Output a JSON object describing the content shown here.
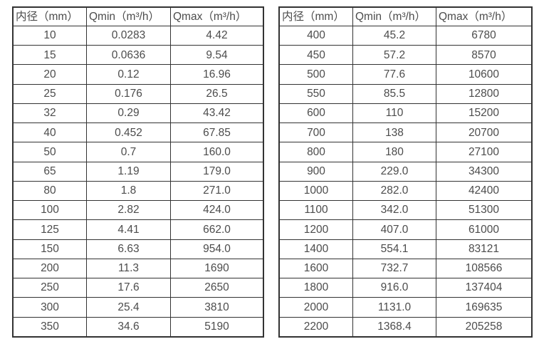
{
  "colors": {
    "border": "#333333",
    "text": "#4c4c4c",
    "background": "#ffffff"
  },
  "tables": [
    {
      "name": "flow-table-small-diameters",
      "headers": [
        "内径（mm）",
        "Qmin（m³/h）",
        "Qmax（m³/h）"
      ],
      "rows": [
        [
          "10",
          "0.0283",
          "4.42"
        ],
        [
          "15",
          "0.0636",
          "9.54"
        ],
        [
          "20",
          "0.12",
          "16.96"
        ],
        [
          "25",
          "0.176",
          "26.5"
        ],
        [
          "32",
          "0.29",
          "43.42"
        ],
        [
          "40",
          "0.452",
          "67.85"
        ],
        [
          "50",
          "0.7",
          "160.0"
        ],
        [
          "65",
          "1.19",
          "179.0"
        ],
        [
          "80",
          "1.8",
          "271.0"
        ],
        [
          "100",
          "2.82",
          "424.0"
        ],
        [
          "125",
          "4.41",
          "662.0"
        ],
        [
          "150",
          "6.63",
          "954.0"
        ],
        [
          "200",
          "11.3",
          "1690"
        ],
        [
          "250",
          "17.6",
          "2650"
        ],
        [
          "300",
          "25.4",
          "3810"
        ],
        [
          "350",
          "34.6",
          "5190"
        ]
      ]
    },
    {
      "name": "flow-table-large-diameters",
      "headers": [
        "内径（mm）",
        "Qmin（m³/h）",
        "Qmax（m³/h）"
      ],
      "rows": [
        [
          "400",
          "45.2",
          "6780"
        ],
        [
          "450",
          "57.2",
          "8570"
        ],
        [
          "500",
          "77.6",
          "10600"
        ],
        [
          "550",
          "85.5",
          "12800"
        ],
        [
          "600",
          "110",
          "15200"
        ],
        [
          "700",
          "138",
          "20700"
        ],
        [
          "800",
          "180",
          "27100"
        ],
        [
          "900",
          "229.0",
          "34300"
        ],
        [
          "1000",
          "282.0",
          "42400"
        ],
        [
          "1100",
          "342.0",
          "51300"
        ],
        [
          "1200",
          "407.0",
          "61000"
        ],
        [
          "1400",
          "554.1",
          "83121"
        ],
        [
          "1600",
          "732.7",
          "108566"
        ],
        [
          "1800",
          "916.0",
          "137404"
        ],
        [
          "2000",
          "1131.0",
          "169635"
        ],
        [
          "2200",
          "1368.4",
          "205258"
        ]
      ]
    }
  ]
}
